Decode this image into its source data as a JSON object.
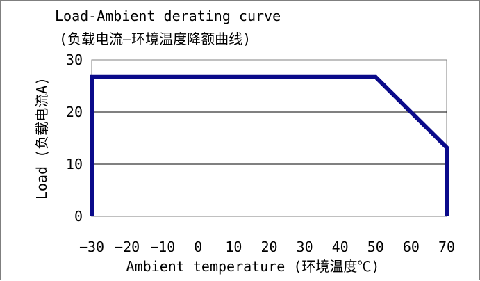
{
  "chart_data": {
    "type": "line",
    "title": "Load-Ambient derating curve",
    "subtitle": "(负载电流—环境温度降额曲线)",
    "xlabel": "Ambient temperature (环境温度℃)",
    "ylabel": "Load (负载电流A)",
    "xlim": [
      -30,
      70
    ],
    "ylim": [
      0,
      30
    ],
    "x_ticks": [
      -30,
      -20,
      -10,
      0,
      10,
      20,
      30,
      40,
      50,
      60,
      70
    ],
    "y_ticks": [
      0,
      10,
      20,
      30
    ],
    "grid": "horizontal",
    "legend": "none",
    "series": [
      {
        "color": "#0a0a8a",
        "points": [
          {
            "x": -30,
            "y": 0
          },
          {
            "x": -30,
            "y": 26.7
          },
          {
            "x": 50,
            "y": 26.7
          },
          {
            "x": 70,
            "y": 13.2
          },
          {
            "x": 70,
            "y": 0
          }
        ]
      }
    ]
  }
}
